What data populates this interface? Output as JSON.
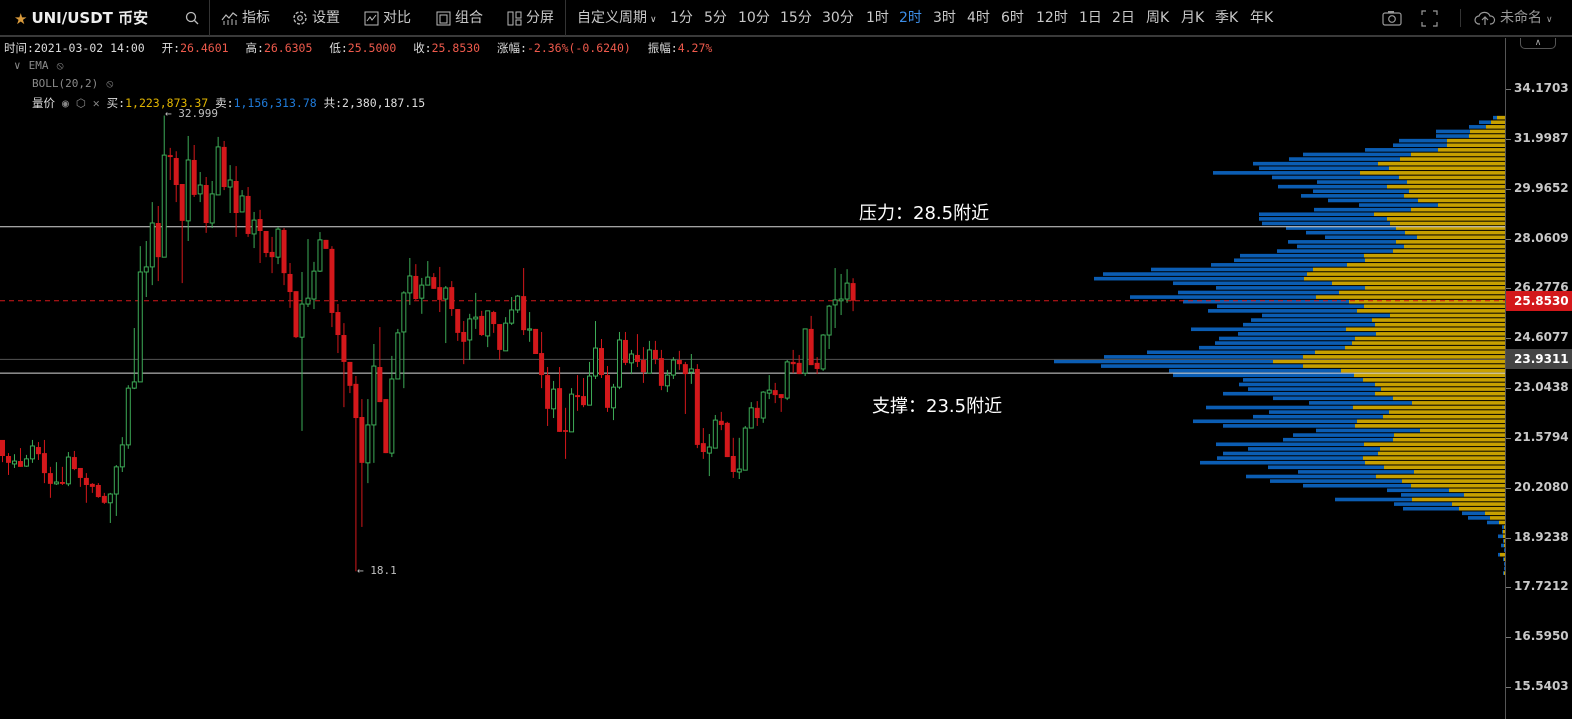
{
  "toolbar": {
    "symbol": "UNI/USDT 币安",
    "buttons": {
      "indicators": "指标",
      "settings": "设置",
      "compare": "对比",
      "combine": "组合",
      "split": "分屏"
    },
    "custom_period": "自定义周期",
    "periods": [
      "1分",
      "5分",
      "10分",
      "15分",
      "30分",
      "1时",
      "2时",
      "3时",
      "4时",
      "6时",
      "12时",
      "1日",
      "2日",
      "周K",
      "月K",
      "季K",
      "年K"
    ],
    "active_period": "2时",
    "layout_name": "未命名",
    "accent": "#3d8ee8"
  },
  "info": {
    "time_label": "时间:",
    "time": "2021-03-02 14:00",
    "open_label": "开:",
    "open": "26.4601",
    "high_label": "高:",
    "high": "26.6305",
    "low_label": "低:",
    "low": "25.5000",
    "close_label": "收:",
    "close": "25.8530",
    "change_label": "涨幅:",
    "change": "-2.36%(-0.6240)",
    "amp_label": "振幅:",
    "amp": "4.27%"
  },
  "indicators": {
    "ema": "EMA",
    "boll": "BOLL(20,2)",
    "vp": "量价",
    "buy_label": "买:",
    "buy": "1,223,873.37",
    "sell_label": "卖:",
    "sell": "1,156,313.78",
    "total_label": "共:",
    "total": "2,380,187.15"
  },
  "annotations": {
    "resistance": "压力：28.5附近",
    "support": "支撑：23.5附近",
    "max": "← 32.999",
    "min": "← 18.1"
  },
  "chart_data": {
    "type": "candlestick",
    "scale": "log",
    "ylim": [
      15.2,
      34.8
    ],
    "y_ticks": [
      "34.1703",
      "31.9987",
      "29.9652",
      "28.0609",
      "26.2776",
      "24.6077",
      "23.0438",
      "21.5794",
      "20.2080",
      "18.9238",
      "17.7212",
      "16.5950",
      "15.5403"
    ],
    "last_price": "25.8530",
    "marked_price": "23.9311",
    "resistance_level": 28.5,
    "support_level": 23.5,
    "colors": {
      "up": "#3dab57",
      "down": "#d3181b",
      "profile_sell": "#0b5db3",
      "profile_buy": "#c7a000"
    },
    "candles_ohlc": [
      [
        21.52,
        21.52,
        20.9,
        21.07
      ],
      [
        21.07,
        21.15,
        20.55,
        20.88
      ],
      [
        20.85,
        21.12,
        20.74,
        20.93
      ],
      [
        20.93,
        21.29,
        20.77,
        20.77
      ],
      [
        20.79,
        21.1,
        20.77,
        20.99
      ],
      [
        20.99,
        21.52,
        20.88,
        21.35
      ],
      [
        21.32,
        21.46,
        20.96,
        21.12
      ],
      [
        21.15,
        21.52,
        20.33,
        20.6
      ],
      [
        20.6,
        20.77,
        19.94,
        20.31
      ],
      [
        20.31,
        20.9,
        20.28,
        20.36
      ],
      [
        20.36,
        20.77,
        20.28,
        20.31
      ],
      [
        20.31,
        21.18,
        20.25,
        21.04
      ],
      [
        21.04,
        21.21,
        20.68,
        20.71
      ],
      [
        20.74,
        20.74,
        20.23,
        20.47
      ],
      [
        20.47,
        20.6,
        19.81,
        20.28
      ],
      [
        20.31,
        20.33,
        20.07,
        20.23
      ],
      [
        20.28,
        20.33,
        19.94,
        19.96
      ],
      [
        19.99,
        20.07,
        19.78,
        19.81
      ],
      [
        19.81,
        20.07,
        19.29,
        20.04
      ],
      [
        20.04,
        20.82,
        19.47,
        20.77
      ],
      [
        20.77,
        21.6,
        20.63,
        21.38
      ],
      [
        21.38,
        23.13,
        21.27,
        23.04
      ],
      [
        23.04,
        24.94,
        23.01,
        23.23
      ],
      [
        23.23,
        27.78,
        23.23,
        26.85
      ],
      [
        26.85,
        27.97,
        25.98,
        27.03
      ],
      [
        27.03,
        29.44,
        26.39,
        28.64
      ],
      [
        28.64,
        29.29,
        26.53,
        27.38
      ],
      [
        27.38,
        32.999,
        27.38,
        31.32
      ],
      [
        31.32,
        31.62,
        30.31,
        31.24
      ],
      [
        31.2,
        31.48,
        29.44,
        30.11
      ],
      [
        30.15,
        30.15,
        26.46,
        28.72
      ],
      [
        28.72,
        32.12,
        27.97,
        31.12
      ],
      [
        31.12,
        31.74,
        29.64,
        29.72
      ],
      [
        29.76,
        30.63,
        29.44,
        30.11
      ],
      [
        30.11,
        30.43,
        28.27,
        28.64
      ],
      [
        28.64,
        30.27,
        28.45,
        29.76
      ],
      [
        29.72,
        32.08,
        29.72,
        31.66
      ],
      [
        31.66,
        31.91,
        29.91,
        30.03
      ],
      [
        30.03,
        30.91,
        29.02,
        30.31
      ],
      [
        30.27,
        30.87,
        28.12,
        29.02
      ],
      [
        29.06,
        29.91,
        29.06,
        29.68
      ],
      [
        29.68,
        30.03,
        28.12,
        28.23
      ],
      [
        28.23,
        29.06,
        27.71,
        28.75
      ],
      [
        28.79,
        29.14,
        27.17,
        28.34
      ],
      [
        28.34,
        28.34,
        27.38,
        27.53
      ],
      [
        27.57,
        28.12,
        26.81,
        27.38
      ],
      [
        27.38,
        28.49,
        27.13,
        28.41
      ],
      [
        28.38,
        28.45,
        26.39,
        26.81
      ],
      [
        26.78,
        27.17,
        25.61,
        26.15
      ],
      [
        26.18,
        26.18,
        24.61,
        24.64
      ],
      [
        24.64,
        26.85,
        21.78,
        25.74
      ],
      [
        25.74,
        28.04,
        25.64,
        25.94
      ],
      [
        25.91,
        27.21,
        25.57,
        26.88
      ],
      [
        26.88,
        28.3,
        26.85,
        28.01
      ],
      [
        28.01,
        28.01,
        27.68,
        27.68
      ],
      [
        27.68,
        27.78,
        24.97,
        25.44
      ],
      [
        25.47,
        25.74,
        24.13,
        24.71
      ],
      [
        24.71,
        25.1,
        22.47,
        23.85
      ],
      [
        23.85,
        23.85,
        22.89,
        23.11
      ],
      [
        23.17,
        23.41,
        18.1,
        22.15
      ],
      [
        22.18,
        22.71,
        19.19,
        20.88
      ],
      [
        20.88,
        22.71,
        20.33,
        21.95
      ],
      [
        21.95,
        24.42,
        20.88,
        23.72
      ],
      [
        23.69,
        24.97,
        22.62,
        22.62
      ],
      [
        22.71,
        22.71,
        21.15,
        21.15
      ],
      [
        21.15,
        24.04,
        21.04,
        23.32
      ],
      [
        23.32,
        24.91,
        23.32,
        24.78
      ],
      [
        24.81,
        26.18,
        23.04,
        26.12
      ],
      [
        26.12,
        27.35,
        25.71,
        26.71
      ],
      [
        26.71,
        27.13,
        25.88,
        25.91
      ],
      [
        25.94,
        26.64,
        25.41,
        26.39
      ],
      [
        26.39,
        27.24,
        26.39,
        26.67
      ],
      [
        26.67,
        26.81,
        26.26,
        26.26
      ],
      [
        26.32,
        27.03,
        25.47,
        25.88
      ],
      [
        25.91,
        26.36,
        24.45,
        26.29
      ],
      [
        26.32,
        26.53,
        25.34,
        25.57
      ],
      [
        25.57,
        25.57,
        24.52,
        24.78
      ],
      [
        24.81,
        25.17,
        23.78,
        24.49
      ],
      [
        24.55,
        25.41,
        23.91,
        25.24
      ],
      [
        25.24,
        26.12,
        24.91,
        25.3
      ],
      [
        25.34,
        25.51,
        24.68,
        24.71
      ],
      [
        24.68,
        25.51,
        24.32,
        25.51
      ],
      [
        25.47,
        25.51,
        24.78,
        25.07
      ],
      [
        25.07,
        25.07,
        23.91,
        24.23
      ],
      [
        24.2,
        25.3,
        24.2,
        25.1
      ],
      [
        25.1,
        25.98,
        25.04,
        25.54
      ],
      [
        25.54,
        26.05,
        25.44,
        26.01
      ],
      [
        26.01,
        26.99,
        24.71,
        24.87
      ],
      [
        24.87,
        25.47,
        24.49,
        24.91
      ],
      [
        24.91,
        24.91,
        24.1,
        24.1
      ],
      [
        24.13,
        24.81,
        23.04,
        23.44
      ],
      [
        23.44,
        23.69,
        21.92,
        22.42
      ],
      [
        22.42,
        23.26,
        22.15,
        23.01
      ],
      [
        23.04,
        23.69,
        21.75,
        21.75
      ],
      [
        21.8,
        22.45,
        20.99,
        21.75
      ],
      [
        21.75,
        23.04,
        21.75,
        22.86
      ],
      [
        22.83,
        23.44,
        22.36,
        22.77
      ],
      [
        22.8,
        23.35,
        22.47,
        22.53
      ],
      [
        22.53,
        23.85,
        22.53,
        23.41
      ],
      [
        23.41,
        25.17,
        23.32,
        24.29
      ],
      [
        24.29,
        24.58,
        23.35,
        23.44
      ],
      [
        23.44,
        23.72,
        22.33,
        22.45
      ],
      [
        22.45,
        23.17,
        22.09,
        23.07
      ],
      [
        23.07,
        24.81,
        23.01,
        24.55
      ],
      [
        24.55,
        24.81,
        23.75,
        23.82
      ],
      [
        23.82,
        24.23,
        23.47,
        24.1
      ],
      [
        24.07,
        24.74,
        23.69,
        23.85
      ],
      [
        23.91,
        24.32,
        23.2,
        23.53
      ],
      [
        23.5,
        24.52,
        23.5,
        24.23
      ],
      [
        24.23,
        24.52,
        23.78,
        23.94
      ],
      [
        23.97,
        24.23,
        22.98,
        23.11
      ],
      [
        23.11,
        23.6,
        22.92,
        23.44
      ],
      [
        23.44,
        24.0,
        23.32,
        23.91
      ],
      [
        23.91,
        24.2,
        23.6,
        23.78
      ],
      [
        23.78,
        23.85,
        22.27,
        23.47
      ],
      [
        23.53,
        24.1,
        23.17,
        23.63
      ],
      [
        23.63,
        23.78,
        21.29,
        21.38
      ],
      [
        21.43,
        21.86,
        20.99,
        21.18
      ],
      [
        21.15,
        21.69,
        20.52,
        21.32
      ],
      [
        21.29,
        22.24,
        21.29,
        22.09
      ],
      [
        22.07,
        22.33,
        21.8,
        21.95
      ],
      [
        22.01,
        22.04,
        21.04,
        21.04
      ],
      [
        21.07,
        21.58,
        20.47,
        20.63
      ],
      [
        20.63,
        21.58,
        20.44,
        20.71
      ],
      [
        20.68,
        21.92,
        20.68,
        21.86
      ],
      [
        21.86,
        22.62,
        21.86,
        22.45
      ],
      [
        22.45,
        22.65,
        21.92,
        22.15
      ],
      [
        22.15,
        22.95,
        22.01,
        22.92
      ],
      [
        22.89,
        23.44,
        22.71,
        22.98
      ],
      [
        22.98,
        23.2,
        22.59,
        22.83
      ],
      [
        22.86,
        22.86,
        22.33,
        22.74
      ],
      [
        22.74,
        23.91,
        22.68,
        23.85
      ],
      [
        23.85,
        24.23,
        23.5,
        23.78
      ],
      [
        23.82,
        24.07,
        23.47,
        23.47
      ],
      [
        23.5,
        24.91,
        23.41,
        24.91
      ],
      [
        24.91,
        25.34,
        23.75,
        23.75
      ],
      [
        23.82,
        24.0,
        23.47,
        23.63
      ],
      [
        23.63,
        24.74,
        23.57,
        24.71
      ],
      [
        24.71,
        25.71,
        24.26,
        25.67
      ],
      [
        25.71,
        26.99,
        24.94,
        25.88
      ],
      [
        25.85,
        26.78,
        25.37,
        25.91
      ],
      [
        25.91,
        26.95,
        25.78,
        26.46
      ],
      [
        26.4601,
        26.6305,
        25.5,
        25.853
      ]
    ],
    "volume_profile": {
      "price_high": 33.0,
      "price_low": 18.0,
      "buy": [
        8,
        14,
        19,
        35,
        36,
        58,
        58,
        67,
        94,
        105,
        127,
        116,
        145,
        106,
        98,
        118,
        96,
        101,
        87,
        67,
        94,
        131,
        118,
        115,
        109,
        100,
        88,
        109,
        101,
        112,
        141,
        140,
        158,
        192,
        198,
        201,
        173,
        140,
        166,
        189,
        156,
        141,
        148,
        115,
        133,
        130,
        159,
        129,
        150,
        153,
        160,
        190,
        202,
        232,
        202,
        164,
        151,
        142,
        130,
        124,
        130,
        112,
        93,
        152,
        116,
        122,
        148,
        150,
        85,
        111,
        112,
        141,
        125,
        127,
        142,
        140,
        121,
        91,
        129,
        103,
        94,
        56,
        41,
        93,
        53,
        46,
        20,
        15,
        6,
        1,
        2,
        2,
        1,
        1,
        0,
        5,
        1,
        0,
        0,
        1
      ],
      "sell": [
        4,
        12,
        17,
        34,
        33,
        48,
        54,
        73,
        108,
        111,
        125,
        130,
        147,
        127,
        90,
        109,
        96,
        103,
        90,
        79,
        97,
        115,
        128,
        128,
        110,
        99,
        92,
        108,
        107,
        116,
        124,
        131,
        136,
        162,
        204,
        210,
        159,
        149,
        161,
        186,
        166,
        147,
        149,
        128,
        121,
        132,
        155,
        138,
        136,
        137,
        146,
        168,
        199,
        219,
        202,
        172,
        181,
        120,
        136,
        133,
        152,
        120,
        103,
        147,
        120,
        130,
        164,
        132,
        104,
        101,
        110,
        148,
        132,
        155,
        146,
        165,
        116,
        116,
        130,
        132,
        108,
        62,
        63,
        77,
        58,
        56,
        23,
        22,
        12,
        2,
        1,
        5,
        1,
        3,
        1,
        2,
        1,
        1,
        1,
        1
      ]
    }
  }
}
